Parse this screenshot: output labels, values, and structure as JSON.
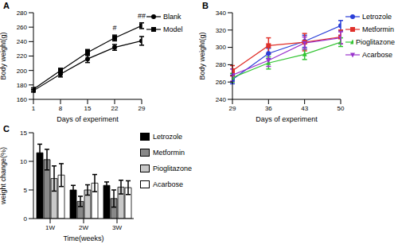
{
  "chart_data": [
    {
      "type": "line",
      "title": "A",
      "x_label": "Days of experiment",
      "y_label": "Body weight(g)",
      "x": [
        1,
        8,
        15,
        22,
        29
      ],
      "xlim": [
        1,
        29
      ],
      "xticks": [
        1,
        8,
        15,
        22,
        29
      ],
      "ylim": [
        160,
        280
      ],
      "yticks": [
        160,
        180,
        200,
        220,
        240,
        260,
        280
      ],
      "legend": "right",
      "series": [
        {
          "name": "Blank",
          "color": "#000000",
          "marker": "circle",
          "values": [
            172,
            195,
            216,
            232,
            241
          ],
          "errors": [
            2,
            4,
            5,
            4,
            6
          ]
        },
        {
          "name": "Model",
          "color": "#000000",
          "marker": "square",
          "values": [
            174,
            200,
            225,
            245,
            262
          ],
          "errors": [
            2,
            3,
            4,
            4,
            4
          ]
        }
      ],
      "annotations": [
        {
          "x": 22,
          "y": 250,
          "text": "#"
        },
        {
          "x": 29,
          "y": 267,
          "text": "##"
        }
      ]
    },
    {
      "type": "line",
      "title": "B",
      "x_label": "Days of experiment",
      "y_label": "Body weight(g)",
      "x": [
        29,
        36,
        43,
        50
      ],
      "xlim": [
        29,
        50
      ],
      "xticks": [
        29,
        36,
        43,
        50
      ],
      "ylim": [
        240,
        340
      ],
      "yticks": [
        240,
        260,
        280,
        300,
        320,
        340
      ],
      "legend": "right",
      "series": [
        {
          "name": "Letrozole",
          "color": "#2a3fd8",
          "marker": "circle",
          "values": [
            263,
            293,
            307,
            325
          ],
          "errors": [
            5,
            6,
            7,
            6
          ]
        },
        {
          "name": "Metformin",
          "color": "#e0302a",
          "marker": "square",
          "values": [
            273,
            302,
            306,
            312
          ],
          "errors": [
            6,
            9,
            10,
            8
          ]
        },
        {
          "name": "Pioglitazone",
          "color": "#33c433",
          "marker": "triangle",
          "values": [
            265,
            282,
            292,
            306
          ],
          "errors": [
            5,
            7,
            6,
            5
          ]
        },
        {
          "name": "Acarbose",
          "color": "#9933cc",
          "marker": "triangle-down",
          "values": [
            268,
            285,
            305,
            311
          ],
          "errors": [
            7,
            7,
            7,
            7
          ]
        }
      ]
    },
    {
      "type": "bar",
      "title": "C",
      "x_label": "Time(weeks)",
      "y_label": "weight change(%)",
      "categories": [
        "1W",
        "2W",
        "3W"
      ],
      "ylim": [
        0,
        15
      ],
      "yticks": [
        0,
        5,
        10,
        15
      ],
      "legend": "right",
      "series": [
        {
          "name": "Letrozole",
          "color": "#000000",
          "values": [
            11.5,
            5.0,
            5.8
          ],
          "errors": [
            1.5,
            0.8,
            0.6
          ]
        },
        {
          "name": "Metformin",
          "color": "#888888",
          "values": [
            10.3,
            3.0,
            3.5
          ],
          "errors": [
            1.8,
            0.9,
            1.5
          ]
        },
        {
          "name": "Pioglitazone",
          "color": "#c8c8c8",
          "values": [
            7.0,
            5.0,
            5.5
          ],
          "errors": [
            2.2,
            0.9,
            1.2
          ]
        },
        {
          "name": "Acarbose",
          "color": "#ffffff",
          "values": [
            7.6,
            6.2,
            5.4
          ],
          "errors": [
            2.0,
            1.5,
            1.2
          ]
        }
      ]
    }
  ]
}
